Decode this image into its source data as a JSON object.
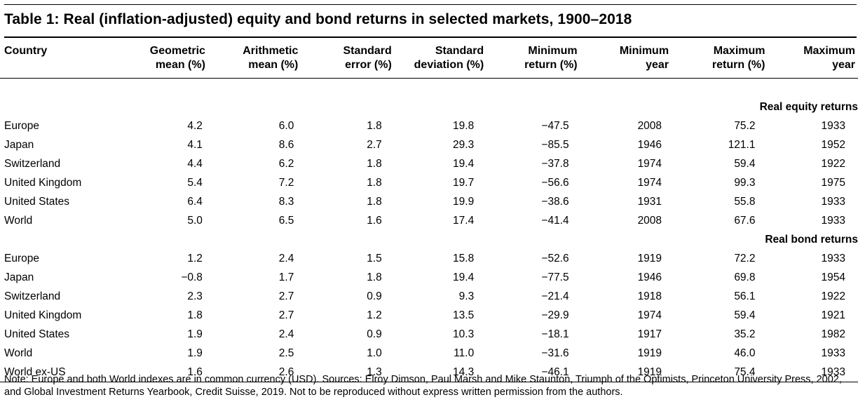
{
  "title": "Table 1: Real (inflation-adjusted) equity and bond returns in selected markets, 1900–2018",
  "columns": [
    "Country",
    "Geometric mean (%)",
    "Arithmetic mean (%)",
    "Standard error (%)",
    "Standard deviation (%)",
    "Minimum return (%)",
    "Minimum year",
    "Maximum return (%)",
    "Maximum year"
  ],
  "header": {
    "country": "Country",
    "geo_1": "Geometric",
    "geo_2": "mean (%)",
    "arith_1": "Arithmetic",
    "arith_2": "mean (%)",
    "se_1": "Standard",
    "se_2": "error (%)",
    "sd_1": "Standard",
    "sd_2": "deviation (%)",
    "minret_1": "Minimum",
    "minret_2": "return (%)",
    "minyr_1": "Minimum",
    "minyr_2": "year",
    "maxret_1": "Maximum",
    "maxret_2": "return (%)",
    "maxyr_1": "Maximum",
    "maxyr_2": "year"
  },
  "sections": [
    {
      "label": "Real equity returns",
      "rows": [
        [
          "Europe",
          "4.2",
          "6.0",
          "1.8",
          "19.8",
          "−47.5",
          "2008",
          "75.2",
          "1933"
        ],
        [
          "Japan",
          "4.1",
          "8.6",
          "2.7",
          "29.3",
          "−85.5",
          "1946",
          "121.1",
          "1952"
        ],
        [
          "Switzerland",
          "4.4",
          "6.2",
          "1.8",
          "19.4",
          "−37.8",
          "1974",
          "59.4",
          "1922"
        ],
        [
          "United Kingdom",
          "5.4",
          "7.2",
          "1.8",
          "19.7",
          "−56.6",
          "1974",
          "99.3",
          "1975"
        ],
        [
          "United States",
          "6.4",
          "8.3",
          "1.8",
          "19.9",
          "−38.6",
          "1931",
          "55.8",
          "1933"
        ],
        [
          "World",
          "5.0",
          "6.5",
          "1.6",
          "17.4",
          "−41.4",
          "2008",
          "67.6",
          "1933"
        ]
      ]
    },
    {
      "label": "Real bond returns",
      "rows": [
        [
          "Europe",
          "1.2",
          "2.4",
          "1.5",
          "15.8",
          "−52.6",
          "1919",
          "72.2",
          "1933"
        ],
        [
          "Japan",
          "−0.8",
          "1.7",
          "1.8",
          "19.4",
          "−77.5",
          "1946",
          "69.8",
          "1954"
        ],
        [
          "Switzerland",
          "2.3",
          "2.7",
          "0.9",
          "9.3",
          "−21.4",
          "1918",
          "56.1",
          "1922"
        ],
        [
          "United Kingdom",
          "1.8",
          "2.7",
          "1.2",
          "13.5",
          "−29.9",
          "1974",
          "59.4",
          "1921"
        ],
        [
          "United States",
          "1.9",
          "2.4",
          "0.9",
          "10.3",
          "−18.1",
          "1917",
          "35.2",
          "1982"
        ],
        [
          "World",
          "1.9",
          "2.5",
          "1.0",
          "11.0",
          "−31.6",
          "1919",
          "46.0",
          "1933"
        ],
        [
          "World ex-US",
          "1.6",
          "2.6",
          "1.3",
          "14.3",
          "−46.1",
          "1919",
          "75.4",
          "1933"
        ]
      ]
    }
  ],
  "note": "Note: Europe and both World indexes are in common currency (USD).  Sources: Elroy Dimson, Paul Marsh and Mike Staunton, Triumph of the Optimists, Princeton University Press, 2002, and Global Investment Returns Yearbook, Credit Suisse, 2019. Not to be reproduced without express written permission from the authors.",
  "chart_data": {
    "type": "table",
    "title": "Table 1: Real (inflation-adjusted) equity and bond returns in selected markets, 1900–2018",
    "columns": [
      "Country",
      "Geometric mean (%)",
      "Arithmetic mean (%)",
      "Standard error (%)",
      "Standard deviation (%)",
      "Minimum return (%)",
      "Minimum year",
      "Maximum return (%)",
      "Maximum year"
    ],
    "groups": [
      "Real equity returns",
      "Real bond returns"
    ]
  }
}
